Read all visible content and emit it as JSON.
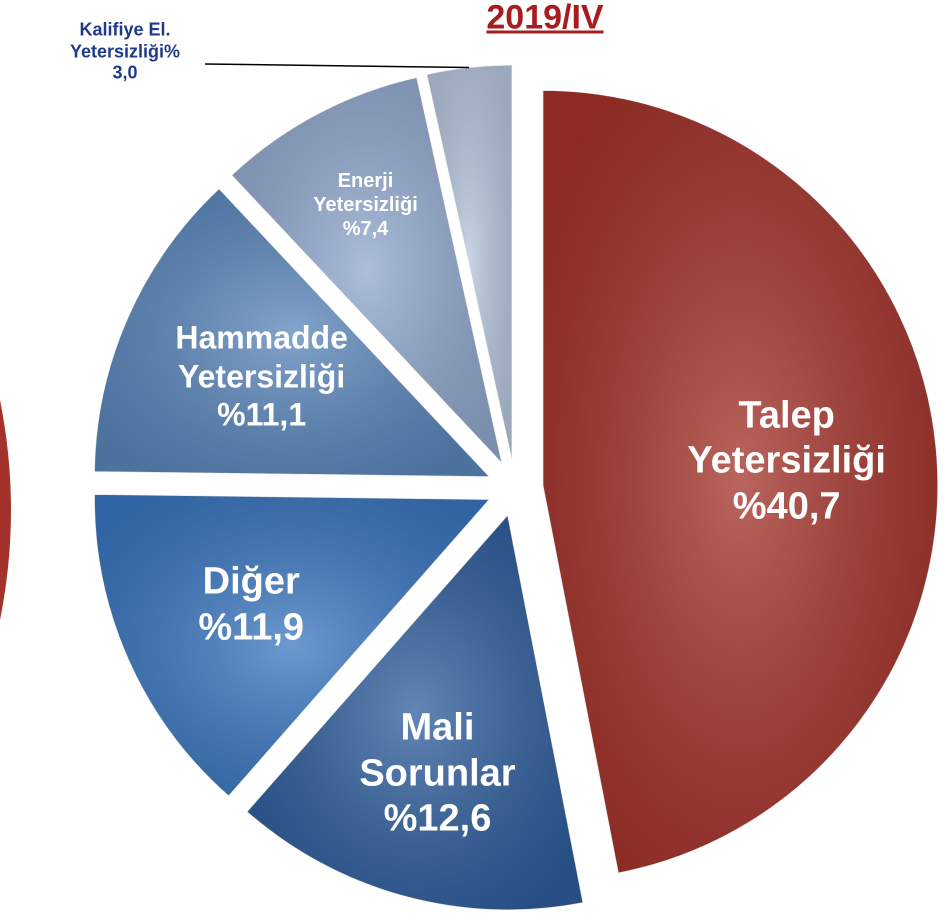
{
  "chart_data": {
    "type": "pie",
    "title": "2019/IV",
    "categories": [
      "Talep Yetersizliği",
      "Mali Sorunlar",
      "Diğer",
      "Hammadde Yetersizliği",
      "Enerji Yetersizliği",
      "Kalifiye El. Yetersizliği%"
    ],
    "values": [
      40.7,
      12.6,
      11.9,
      11.1,
      7.4,
      3.0
    ],
    "value_labels": [
      "%40,7",
      "%12,6",
      "%11,9",
      "%11,1",
      "%7,4",
      "3,0"
    ],
    "colors": [
      "#a3322a",
      "#2e5d9c",
      "#3a76bf",
      "#5a86ba",
      "#90a8cd",
      "#b7c6dd"
    ]
  }
}
